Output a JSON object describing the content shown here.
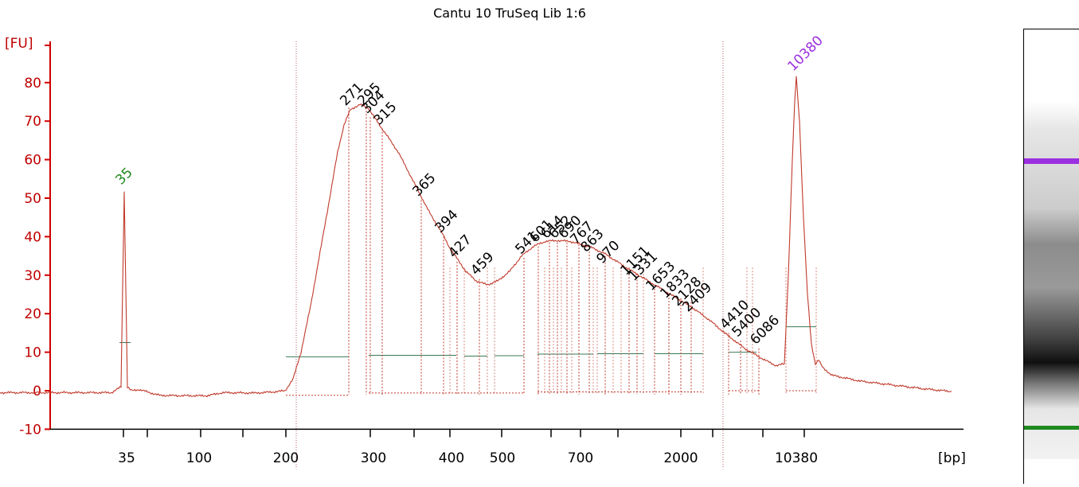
{
  "chart_data": {
    "type": "line",
    "title": "Cantu 10 TruSeq Lib 1:6",
    "ylabel": "[FU]",
    "xlabel": "[bp]",
    "ylim": [
      -10,
      85
    ],
    "yticks": [
      -10,
      0,
      10,
      20,
      30,
      40,
      50,
      60,
      70,
      80
    ],
    "xticks_labeled": [
      "35",
      "100",
      "200",
      "300",
      "400",
      "500",
      "700",
      "2000",
      "10380"
    ],
    "colors": {
      "trace": "#c0392b",
      "axis": "#d00000",
      "lower_marker": "#1f8a1f",
      "upper_marker": "#9b30e0",
      "peak_label": "#000000"
    },
    "lower_marker": {
      "label": "35",
      "fu": 52.5
    },
    "upper_marker": {
      "label": "10380",
      "fu": 82
    },
    "peaks": [
      {
        "label": "271",
        "fu": 73
      },
      {
        "label": "295",
        "fu": 73
      },
      {
        "label": "304",
        "fu": 71
      },
      {
        "label": "315",
        "fu": 68
      },
      {
        "label": "365",
        "fu": 49.5
      },
      {
        "label": "394",
        "fu": 40
      },
      {
        "label": "427",
        "fu": 33.5
      },
      {
        "label": "459",
        "fu": 29
      },
      {
        "label": "541",
        "fu": 34.5
      },
      {
        "label": "601",
        "fu": 37.5
      },
      {
        "label": "614",
        "fu": 38.5
      },
      {
        "label": "652",
        "fu": 38.5
      },
      {
        "label": "690",
        "fu": 38.5
      },
      {
        "label": "767",
        "fu": 37
      },
      {
        "label": "863",
        "fu": 35
      },
      {
        "label": "970",
        "fu": 32
      },
      {
        "label": "1151",
        "fu": 29
      },
      {
        "label": "1331",
        "fu": 27.5
      },
      {
        "label": "1653",
        "fu": 25
      },
      {
        "label": "1833",
        "fu": 23
      },
      {
        "label": "2128",
        "fu": 21
      },
      {
        "label": "2409",
        "fu": 19.5
      },
      {
        "label": "4410",
        "fu": 15
      },
      {
        "label": "5400",
        "fu": 13
      },
      {
        "label": "6086",
        "fu": 11
      }
    ],
    "trace": [
      [
        0,
        -0.5
      ],
      [
        70,
        -0.5
      ],
      [
        140,
        -0.5
      ],
      [
        152,
        1
      ],
      [
        156,
        52
      ],
      [
        160,
        1
      ],
      [
        165,
        0
      ],
      [
        175,
        0.3
      ],
      [
        200,
        -1.2
      ],
      [
        230,
        -1.3
      ],
      [
        260,
        -1.3
      ],
      [
        280,
        -0.5
      ],
      [
        320,
        -0.6
      ],
      [
        345,
        -0.3
      ],
      [
        358,
        0
      ],
      [
        368,
        3
      ],
      [
        378,
        10
      ],
      [
        390,
        22
      ],
      [
        402,
        36
      ],
      [
        414,
        50
      ],
      [
        424,
        62
      ],
      [
        432,
        69
      ],
      [
        440,
        73
      ],
      [
        452,
        74.3
      ],
      [
        462,
        73.5
      ],
      [
        470,
        71
      ],
      [
        480,
        68
      ],
      [
        490,
        65
      ],
      [
        500,
        62
      ],
      [
        510,
        58
      ],
      [
        520,
        54
      ],
      [
        530,
        50
      ],
      [
        540,
        46
      ],
      [
        555,
        41
      ],
      [
        565,
        37
      ],
      [
        575,
        34
      ],
      [
        585,
        31
      ],
      [
        598,
        28.5
      ],
      [
        612,
        27.5
      ],
      [
        625,
        28.5
      ],
      [
        640,
        31
      ],
      [
        655,
        35
      ],
      [
        670,
        37.5
      ],
      [
        685,
        38.8
      ],
      [
        700,
        39
      ],
      [
        715,
        38.8
      ],
      [
        730,
        38
      ],
      [
        745,
        37
      ],
      [
        760,
        35.5
      ],
      [
        775,
        33.5
      ],
      [
        790,
        31.5
      ],
      [
        810,
        29
      ],
      [
        830,
        26.5
      ],
      [
        850,
        24
      ],
      [
        870,
        21.5
      ],
      [
        890,
        18.5
      ],
      [
        910,
        15
      ],
      [
        935,
        11
      ],
      [
        960,
        8
      ],
      [
        975,
        6.5
      ],
      [
        985,
        7
      ],
      [
        990,
        30
      ],
      [
        995,
        60
      ],
      [
        998,
        75
      ],
      [
        1000,
        81.5
      ],
      [
        1004,
        70
      ],
      [
        1009,
        45
      ],
      [
        1014,
        25
      ],
      [
        1019,
        12
      ],
      [
        1024,
        7
      ],
      [
        1028,
        8
      ],
      [
        1033,
        6
      ],
      [
        1045,
        4
      ],
      [
        1080,
        2.5
      ],
      [
        1120,
        1.5
      ],
      [
        1160,
        0.5
      ],
      [
        1195,
        -0.2
      ]
    ]
  }
}
